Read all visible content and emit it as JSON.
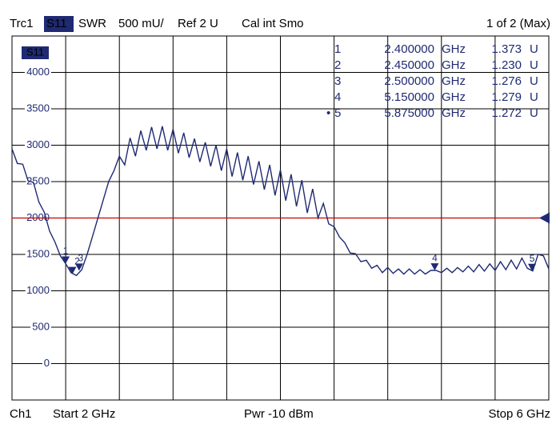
{
  "chart_data": {
    "type": "line",
    "header": [
      "Trc1",
      "S11",
      "SWR",
      "500 mU/",
      "Ref 2 U",
      "Cal int Smo"
    ],
    "header_right": "1 of 2 (Max)",
    "footer": [
      "Ch1",
      "Start  2 GHz",
      "Pwr  -10 dBm",
      "Stop  6 GHz"
    ],
    "xlim": [
      2,
      6
    ],
    "ylim": [
      -500,
      4500
    ],
    "yticks": [
      0,
      500,
      1000,
      1500,
      2000,
      2500,
      3000,
      3500,
      4000
    ],
    "grid": true,
    "ref": 2000,
    "ref_color": "#cc0000",
    "series": [
      {
        "name": "S11",
        "color": "#1f2a72",
        "x": [
          2.0,
          2.04,
          2.08,
          2.12,
          2.16,
          2.2,
          2.24,
          2.28,
          2.32,
          2.36,
          2.4,
          2.44,
          2.48,
          2.52,
          2.56,
          2.6,
          2.64,
          2.68,
          2.72,
          2.76,
          2.8,
          2.84,
          2.88,
          2.92,
          2.96,
          3.0,
          3.04,
          3.08,
          3.12,
          3.16,
          3.2,
          3.24,
          3.28,
          3.32,
          3.36,
          3.4,
          3.44,
          3.48,
          3.52,
          3.56,
          3.6,
          3.64,
          3.68,
          3.72,
          3.76,
          3.8,
          3.84,
          3.88,
          3.92,
          3.96,
          4.0,
          4.04,
          4.08,
          4.12,
          4.16,
          4.2,
          4.24,
          4.28,
          4.32,
          4.36,
          4.4,
          4.44,
          4.48,
          4.52,
          4.56,
          4.6,
          4.64,
          4.68,
          4.72,
          4.76,
          4.8,
          4.84,
          4.88,
          4.92,
          4.96,
          5.0,
          5.04,
          5.08,
          5.12,
          5.16,
          5.2,
          5.24,
          5.28,
          5.32,
          5.36,
          5.4,
          5.44,
          5.48,
          5.52,
          5.56,
          5.6,
          5.64,
          5.68,
          5.72,
          5.76,
          5.8,
          5.84,
          5.88,
          5.92,
          5.96,
          6.0
        ],
        "values": [
          2950,
          2750,
          2740,
          2510,
          2490,
          2220,
          2080,
          1820,
          1670,
          1480,
          1373,
          1250,
          1210,
          1290,
          1500,
          1750,
          2000,
          2250,
          2500,
          2650,
          2850,
          2730,
          3100,
          2850,
          3200,
          2930,
          3250,
          2950,
          3260,
          2930,
          3220,
          2890,
          3170,
          2830,
          3090,
          2770,
          3040,
          2710,
          3000,
          2650,
          2950,
          2570,
          2900,
          2520,
          2850,
          2460,
          2780,
          2390,
          2730,
          2310,
          2660,
          2240,
          2600,
          2160,
          2520,
          2070,
          2400,
          2000,
          2200,
          1920,
          1880,
          1740,
          1660,
          1520,
          1510,
          1400,
          1420,
          1310,
          1350,
          1250,
          1320,
          1240,
          1300,
          1230,
          1300,
          1230,
          1290,
          1230,
          1280,
          1280,
          1250,
          1310,
          1250,
          1320,
          1260,
          1340,
          1260,
          1360,
          1270,
          1370,
          1280,
          1400,
          1290,
          1420,
          1300,
          1450,
          1310,
          1272,
          1500,
          1480,
          1300
        ]
      }
    ],
    "active_prefix": "•",
    "markers": [
      {
        "number": 1,
        "x": 2.4,
        "x_label": "2.400000",
        "x_unit": "GHz",
        "y": 1373,
        "y_label": "1.373",
        "y_unit": "U"
      },
      {
        "number": 2,
        "x": 2.45,
        "x_label": "2.450000",
        "x_unit": "GHz",
        "y": 1230,
        "y_label": "1.230",
        "y_unit": "U"
      },
      {
        "number": 3,
        "x": 2.5,
        "x_label": "2.500000",
        "x_unit": "GHz",
        "y": 1276,
        "y_label": "1.276",
        "y_unit": "U"
      },
      {
        "number": 4,
        "x": 5.15,
        "x_label": "5.150000",
        "x_unit": "GHz",
        "y": 1279,
        "y_label": "1.279",
        "y_unit": "U"
      },
      {
        "number": 5,
        "x": 5.875,
        "x_label": "5.875000",
        "x_unit": "GHz",
        "y": 1272,
        "y_label": "1.272",
        "y_unit": "U",
        "active": true
      }
    ]
  }
}
